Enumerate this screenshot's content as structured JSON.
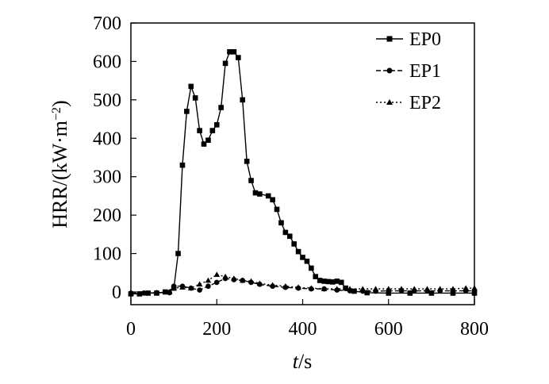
{
  "chart_data": {
    "type": "line",
    "title": "",
    "xlabel_italic": "t",
    "xlabel_unit": "/s",
    "ylabel": "HRR/(kW·m",
    "ylabel_sup": "−2",
    "ylabel_close": ")",
    "xlim": [
      0,
      800
    ],
    "ylim": [
      -30,
      700
    ],
    "xticks": [
      0,
      200,
      400,
      600,
      800
    ],
    "yticks": [
      0,
      100,
      200,
      300,
      400,
      500,
      600,
      700
    ],
    "xtick_labels": [
      "0",
      "200",
      "400",
      "600",
      "800"
    ],
    "ytick_labels": [
      "0",
      "100",
      "200",
      "300",
      "400",
      "500",
      "600",
      "700"
    ],
    "grid": false,
    "legend_position": "top-right",
    "series": [
      {
        "name": "EP0",
        "marker": "square",
        "x": [
          0,
          20,
          40,
          60,
          80,
          100,
          110,
          120,
          130,
          140,
          150,
          160,
          170,
          180,
          190,
          200,
          210,
          220,
          230,
          240,
          250,
          260,
          270,
          280,
          290,
          300,
          320,
          330,
          340,
          350,
          360,
          370,
          380,
          390,
          400,
          410,
          420,
          430,
          440,
          450,
          460,
          470,
          480,
          490,
          500,
          520,
          550,
          600,
          650,
          700,
          750,
          800
        ],
        "y": [
          -5,
          -5,
          -3,
          -3,
          0,
          10,
          100,
          330,
          470,
          535,
          505,
          420,
          385,
          395,
          420,
          435,
          480,
          595,
          625,
          625,
          610,
          500,
          340,
          290,
          258,
          255,
          250,
          240,
          215,
          180,
          155,
          145,
          125,
          105,
          90,
          80,
          62,
          40,
          30,
          28,
          27,
          26,
          28,
          25,
          10,
          2,
          -2,
          -3,
          -3,
          -3,
          -3,
          -3
        ]
      },
      {
        "name": "EP1",
        "marker": "circle",
        "x": [
          0,
          30,
          60,
          90,
          100,
          120,
          140,
          160,
          180,
          200,
          220,
          240,
          260,
          280,
          300,
          330,
          360,
          390,
          420,
          450,
          480,
          510,
          540,
          570,
          600,
          630,
          660,
          690,
          720,
          750,
          780,
          800
        ],
        "y": [
          -3,
          -3,
          -2,
          -2,
          15,
          15,
          10,
          5,
          15,
          25,
          35,
          32,
          30,
          25,
          20,
          15,
          12,
          10,
          8,
          8,
          5,
          3,
          2,
          2,
          3,
          3,
          3,
          3,
          3,
          3,
          3,
          3
        ]
      },
      {
        "name": "EP2",
        "marker": "triangle",
        "x": [
          0,
          30,
          60,
          90,
          100,
          120,
          140,
          160,
          180,
          200,
          220,
          240,
          260,
          280,
          300,
          330,
          360,
          390,
          420,
          450,
          480,
          510,
          540,
          570,
          600,
          630,
          660,
          690,
          720,
          750,
          780,
          800
        ],
        "y": [
          -3,
          -3,
          -2,
          0,
          10,
          12,
          10,
          20,
          30,
          45,
          40,
          35,
          30,
          28,
          22,
          18,
          15,
          12,
          10,
          8,
          8,
          8,
          8,
          8,
          8,
          8,
          8,
          8,
          8,
          8,
          10,
          10
        ]
      }
    ]
  }
}
